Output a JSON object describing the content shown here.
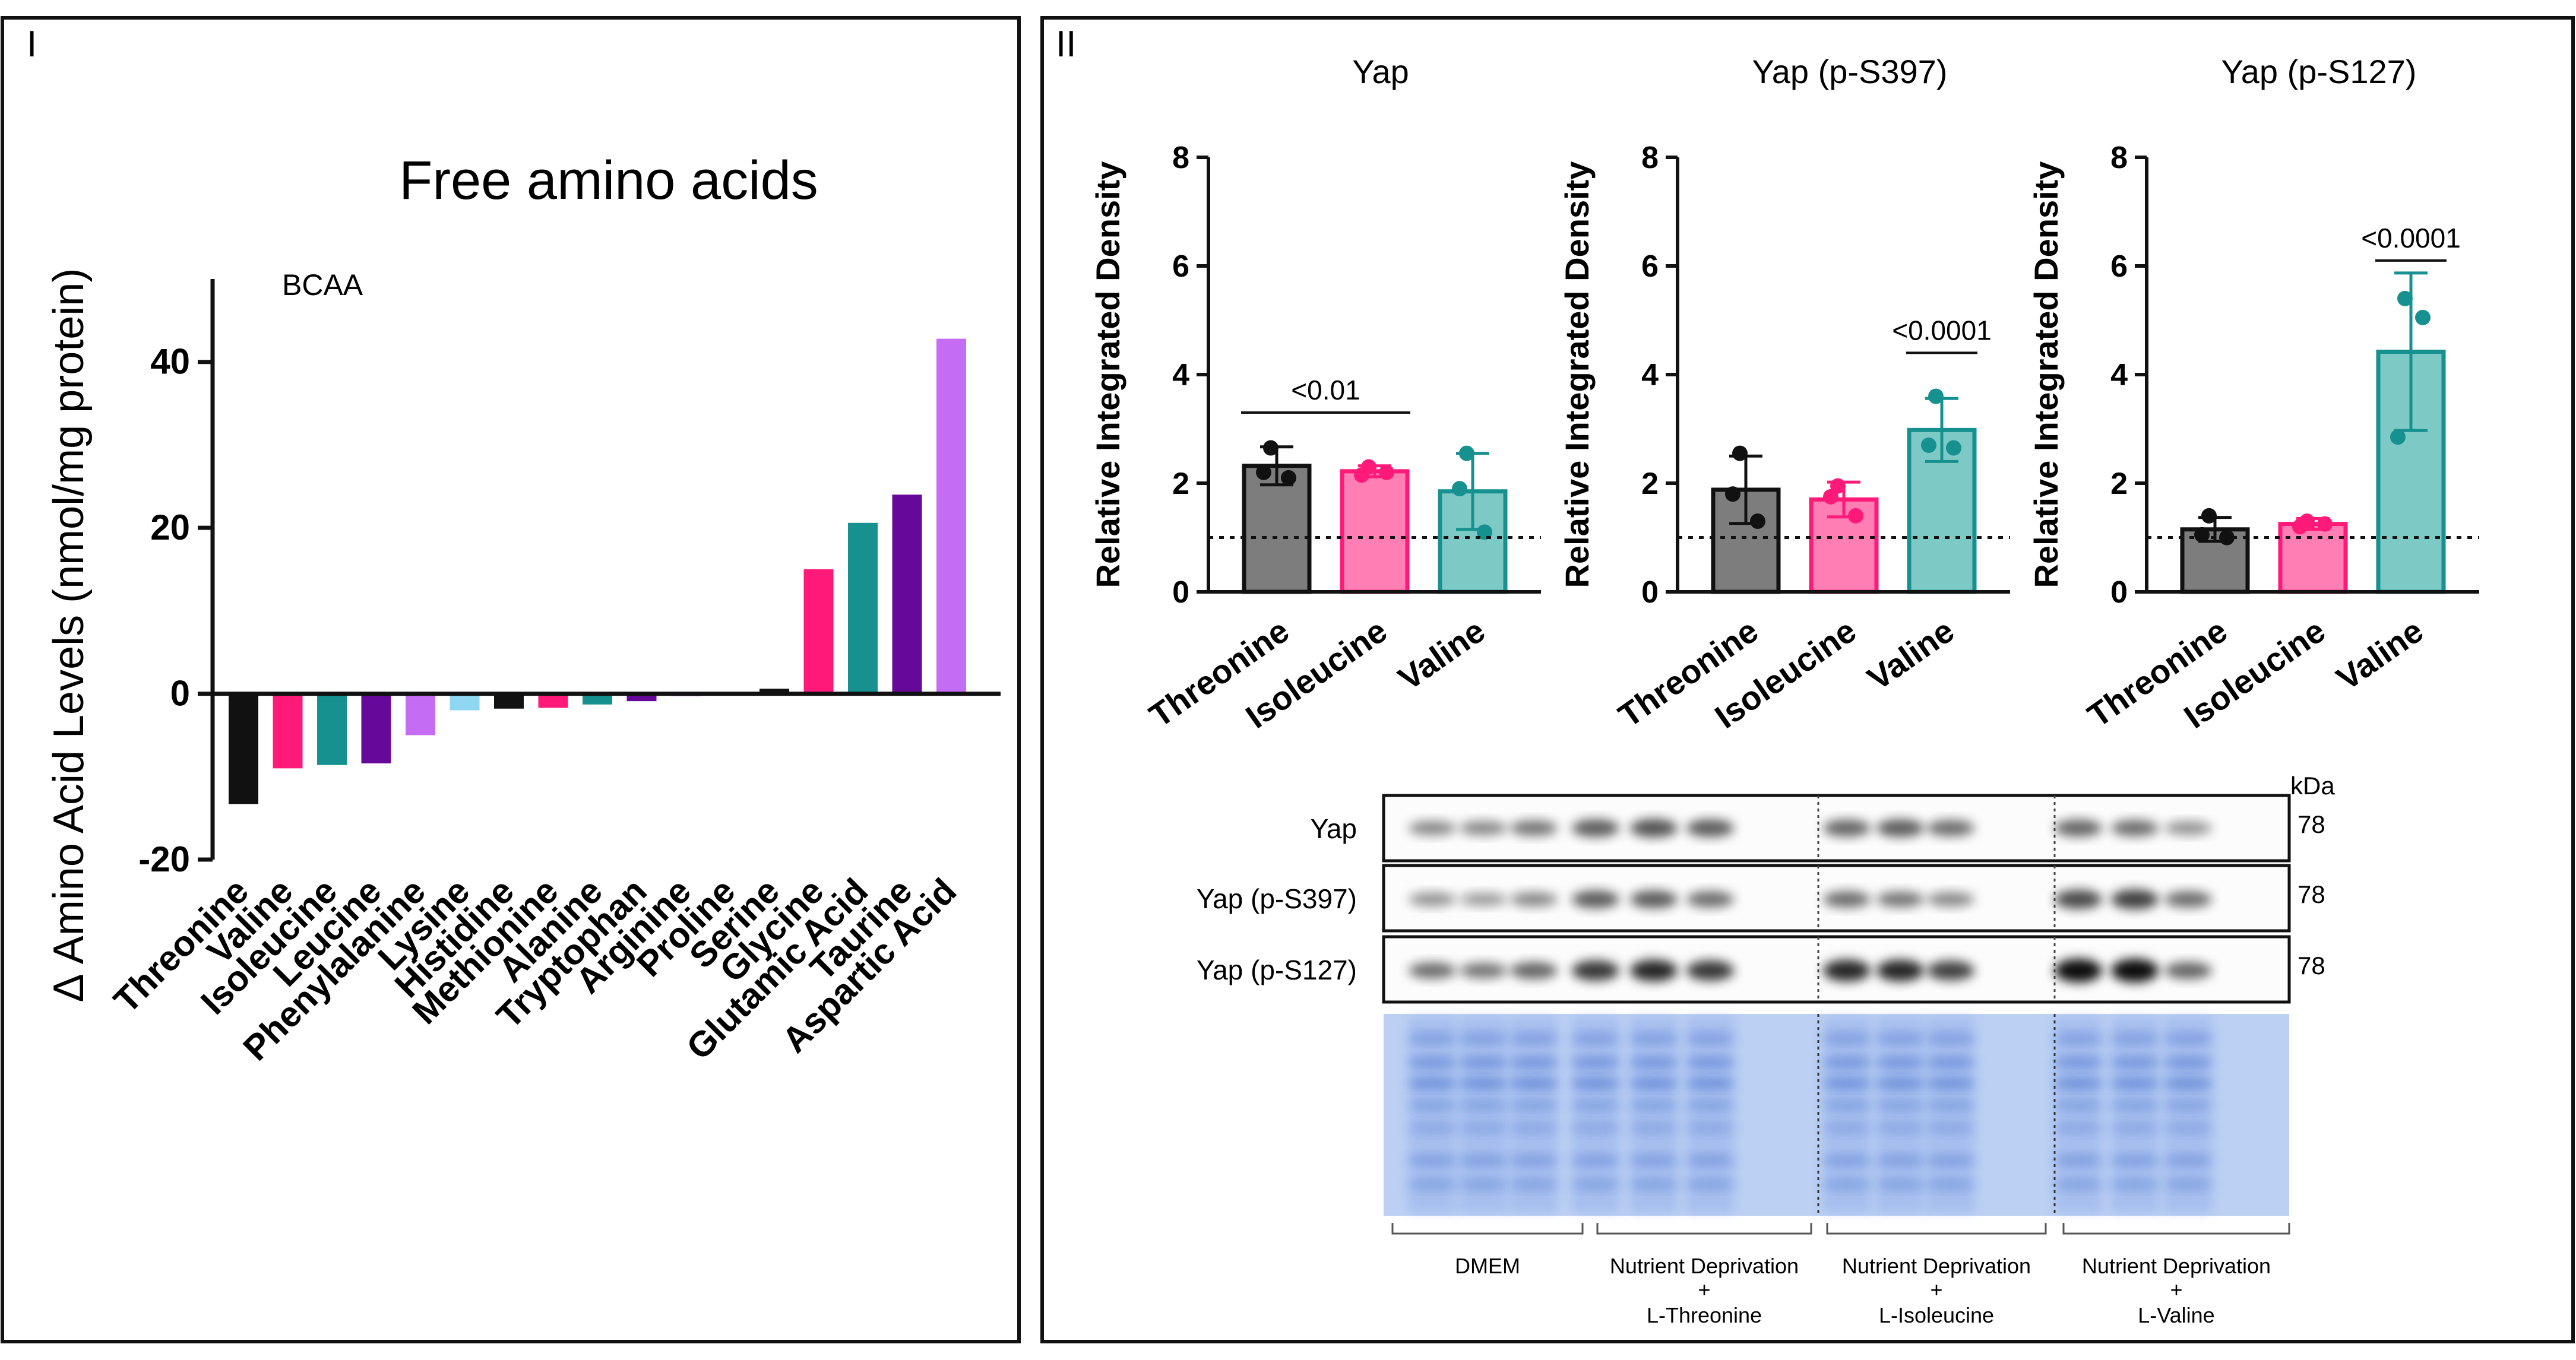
{
  "colors": {
    "black": "#111111",
    "gray": "#7d7d7d",
    "pink": "#ff1a7a",
    "pink_light": "#ff7fb5",
    "teal": "#16918f",
    "teal_light": "#7dc9c5",
    "purple": "#66099a",
    "lilac": "#c56cf5",
    "light_blue": "#8fd6f0",
    "gel": "#bcd0f3"
  },
  "panel_I": {
    "label": "I",
    "annotation": "BCAA",
    "chart_data": {
      "type": "bar",
      "title": "Free amino acids",
      "xlabel": "",
      "ylabel": "Δ Amino Acid Levels (nmol/mg protein)",
      "ylim": [
        -20,
        50
      ],
      "yticks": [
        -20,
        0,
        20,
        40
      ],
      "categories": [
        "Threonine",
        "Valine",
        "Isoleucine",
        "Leucine",
        "Phenylalanine",
        "Lysine",
        "Histidine",
        "Methionine",
        "Alanine",
        "Tryptophan",
        "Arginine",
        "Proline",
        "Serine",
        "Glycine",
        "Glutamic Acid",
        "Taurine",
        "Aspartic Acid"
      ],
      "values": [
        -13.3,
        -9.0,
        -8.6,
        -8.4,
        -5.0,
        -2.0,
        -1.8,
        -1.7,
        -1.3,
        -0.9,
        -0.3,
        0.2,
        0.6,
        15.0,
        20.6,
        24.0,
        42.8
      ],
      "bar_colors": [
        "black",
        "pink",
        "teal",
        "purple",
        "lilac",
        "light_blue",
        "black",
        "pink",
        "teal",
        "purple",
        "lilac",
        "light_blue",
        "black",
        "pink",
        "teal",
        "purple",
        "lilac"
      ]
    }
  },
  "panel_II": {
    "label": "II",
    "charts": [
      {
        "type": "bar",
        "title": "Yap",
        "ylabel": "Relative Integrated Density",
        "ylim": [
          0,
          8
        ],
        "yticks": [
          0,
          2,
          4,
          6,
          8
        ],
        "categories": [
          "Threonine",
          "Isoleucine",
          "Valine"
        ],
        "values": [
          2.32,
          2.22,
          1.85
        ],
        "errors": [
          0.35,
          0.1,
          0.7
        ],
        "points": [
          [
            2.65,
            2.1,
            2.2
          ],
          [
            2.3,
            2.2,
            2.15
          ],
          [
            2.55,
            1.1,
            1.9
          ]
        ],
        "reference_line": 1,
        "comparison": {
          "label": "<0.01",
          "from": 0,
          "to": 1,
          "y": 3.3
        }
      },
      {
        "type": "bar",
        "title": "Yap (p-S397)",
        "ylabel": "Relative Integrated Density",
        "ylim": [
          0,
          8
        ],
        "yticks": [
          0,
          2,
          4,
          6,
          8
        ],
        "categories": [
          "Threonine",
          "Isoleucine",
          "Valine"
        ],
        "values": [
          1.88,
          1.7,
          2.98
        ],
        "errors": [
          0.62,
          0.32,
          0.58
        ],
        "points": [
          [
            2.55,
            1.3,
            1.8
          ],
          [
            1.95,
            1.4,
            1.75
          ],
          [
            3.6,
            2.65,
            2.7
          ]
        ],
        "reference_line": 1,
        "comparison": {
          "label": "<0.0001",
          "from": 2,
          "to": 2,
          "y": 4.4
        }
      },
      {
        "type": "bar",
        "title": "Yap (p-S127)",
        "ylabel": "Relative Integrated Density",
        "ylim": [
          0,
          8
        ],
        "yticks": [
          0,
          2,
          4,
          6,
          8
        ],
        "categories": [
          "Threonine",
          "Isoleucine",
          "Valine"
        ],
        "values": [
          1.15,
          1.25,
          4.42
        ],
        "errors": [
          0.22,
          0.1,
          1.45
        ],
        "points": [
          [
            1.4,
            1.0,
            1.05
          ],
          [
            1.3,
            1.25,
            1.2
          ],
          [
            5.4,
            5.05,
            2.85
          ]
        ],
        "reference_line": 1,
        "comparison": {
          "label": "<0.0001",
          "from": 2,
          "to": 2,
          "y": 6.1
        }
      }
    ],
    "blot": {
      "unit": "kDa",
      "rows": [
        {
          "label": "Yap",
          "kda": "78",
          "intensities": [
            0.3,
            0.3,
            0.4,
            0.55,
            0.6,
            0.55,
            0.5,
            0.55,
            0.45,
            0.5,
            0.45,
            0.25
          ]
        },
        {
          "label": "Yap (p-S397)",
          "kda": "78",
          "intensities": [
            0.25,
            0.2,
            0.3,
            0.55,
            0.55,
            0.45,
            0.45,
            0.4,
            0.3,
            0.65,
            0.7,
            0.45
          ]
        },
        {
          "label": "Yap (p-S127)",
          "kda": "78",
          "intensities": [
            0.45,
            0.4,
            0.5,
            0.75,
            0.85,
            0.75,
            0.85,
            0.85,
            0.7,
            1.0,
            1.0,
            0.5
          ]
        }
      ],
      "groups": [
        {
          "line1": "DMEM",
          "line2": "",
          "line3": ""
        },
        {
          "line1": "Nutrient Deprivation",
          "line2": "+",
          "line3": "L-Threonine"
        },
        {
          "line1": "Nutrient Deprivation",
          "line2": "+",
          "line3": "L-Isoleucine"
        },
        {
          "line1": "Nutrient Deprivation",
          "line2": "+",
          "line3": "L-Valine"
        }
      ]
    }
  }
}
